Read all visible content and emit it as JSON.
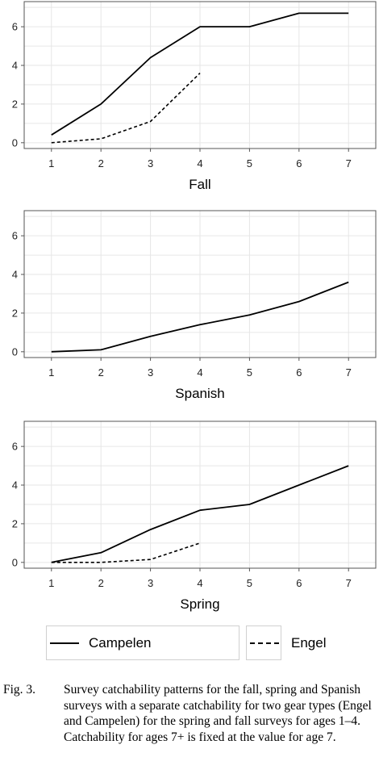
{
  "chart_data": [
    {
      "type": "line",
      "xlabel": "Fall",
      "x": [
        1,
        2,
        3,
        4,
        5,
        6,
        7
      ],
      "xlim": [
        0.45,
        7.55
      ],
      "ylim": [
        -0.3,
        7.3
      ],
      "yticks": [
        0,
        2,
        4,
        6
      ],
      "grid": true,
      "series": [
        {
          "name": "Campelen",
          "x": [
            1,
            2,
            3,
            4,
            5,
            6,
            7
          ],
          "values": [
            0.4,
            2.0,
            4.4,
            6.0,
            6.0,
            6.7,
            6.7
          ],
          "style": "solid"
        },
        {
          "name": "Engel",
          "x": [
            1,
            2,
            3,
            4
          ],
          "values": [
            0.0,
            0.2,
            1.1,
            3.6
          ],
          "style": "dashed"
        }
      ]
    },
    {
      "type": "line",
      "xlabel": "Spanish",
      "x": [
        1,
        2,
        3,
        4,
        5,
        6,
        7
      ],
      "xlim": [
        0.45,
        7.55
      ],
      "ylim": [
        -0.3,
        7.3
      ],
      "yticks": [
        0,
        2,
        4,
        6
      ],
      "grid": true,
      "series": [
        {
          "name": "Campelen",
          "x": [
            1,
            2,
            3,
            4,
            5,
            6,
            7
          ],
          "values": [
            0.0,
            0.1,
            0.8,
            1.4,
            1.9,
            2.6,
            3.6
          ],
          "style": "solid"
        }
      ]
    },
    {
      "type": "line",
      "xlabel": "Spring",
      "x": [
        1,
        2,
        3,
        4,
        5,
        6,
        7
      ],
      "xlim": [
        0.45,
        7.55
      ],
      "ylim": [
        -0.3,
        7.3
      ],
      "yticks": [
        0,
        2,
        4,
        6
      ],
      "grid": true,
      "series": [
        {
          "name": "Campelen",
          "x": [
            1,
            2,
            3,
            4,
            5,
            6,
            7
          ],
          "values": [
            0.0,
            0.5,
            1.7,
            2.7,
            3.0,
            4.0,
            5.0
          ],
          "style": "solid"
        },
        {
          "name": "Engel",
          "x": [
            1,
            2,
            3,
            4
          ],
          "values": [
            0.0,
            0.0,
            0.15,
            1.0
          ],
          "style": "dashed"
        }
      ]
    }
  ],
  "legend": [
    {
      "label": "Campelen",
      "style": "solid"
    },
    {
      "label": "Engel",
      "style": "dashed"
    }
  ],
  "caption": {
    "label": "Fig. 3.",
    "text": "Survey catchability patterns for the fall, spring and Spanish surveys with a separate catchability for two gear types (Engel and Campelen) for the spring and fall surveys for ages 1–4. Catchability for ages 7+ is fixed at the value for age 7."
  },
  "colors": {
    "line": "#000000",
    "grid": "#e6e6e6",
    "frame": "#555555"
  }
}
